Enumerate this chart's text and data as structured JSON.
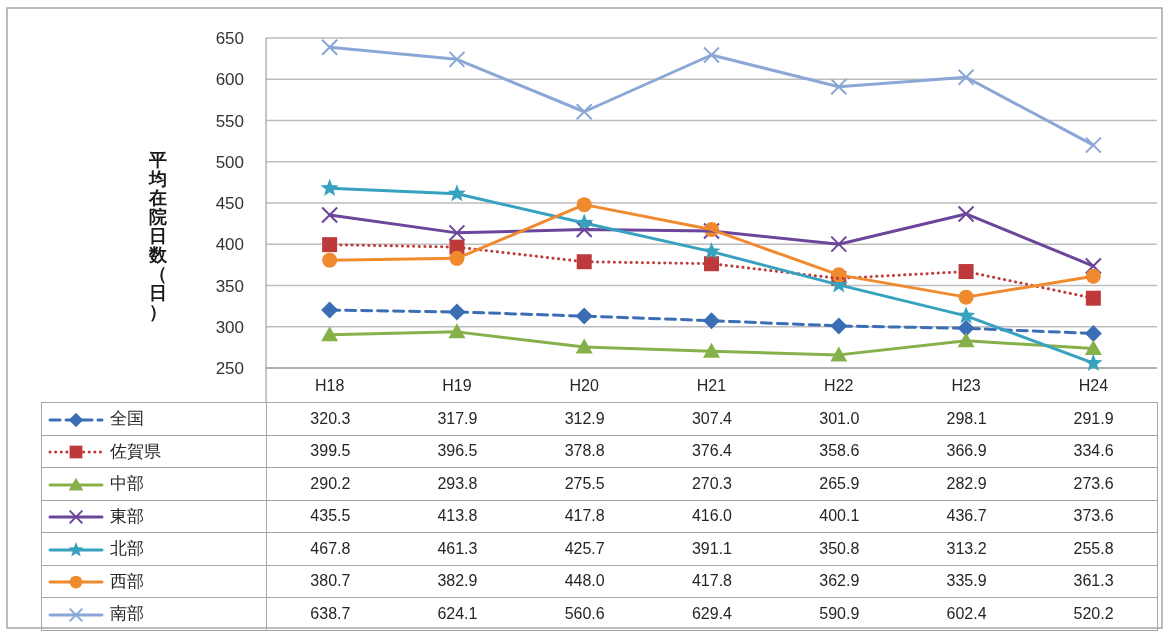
{
  "chart_data": {
    "type": "line",
    "ylabel": "平均在院日数（日）",
    "categories": [
      "H18",
      "H19",
      "H20",
      "H21",
      "H22",
      "H23",
      "H24"
    ],
    "ylim": [
      250,
      650
    ],
    "yticks": [
      250,
      300,
      350,
      400,
      450,
      500,
      550,
      600,
      650
    ],
    "grid": "y",
    "legend": "bottom",
    "series": [
      {
        "name": "全国",
        "color": "#3b6eb5",
        "marker": "diamond",
        "line_style": "dashed",
        "values": [
          320.3,
          317.9,
          312.9,
          307.4,
          301.0,
          298.1,
          291.9
        ],
        "value_labels": [
          "320.3",
          "317.9",
          "312.9",
          "307.4",
          "301.0",
          "298.1",
          "291.9"
        ]
      },
      {
        "name": "佐賀県",
        "color": "#be3a3a",
        "marker": "square",
        "line_style": "dotted",
        "values": [
          399.5,
          396.5,
          378.8,
          376.4,
          358.6,
          366.9,
          334.6
        ],
        "value_labels": [
          "399.5",
          "396.5",
          "378.8",
          "376.4",
          "358.6",
          "366.9",
          "334.6"
        ]
      },
      {
        "name": "中部",
        "color": "#86b04a",
        "marker": "triangle",
        "line_style": "solid",
        "values": [
          290.2,
          293.8,
          275.5,
          270.3,
          265.9,
          282.9,
          273.6
        ],
        "value_labels": [
          "290.2",
          "293.8",
          "275.5",
          "270.3",
          "265.9",
          "282.9",
          "273.6"
        ]
      },
      {
        "name": "東部",
        "color": "#6b469b",
        "marker": "cross",
        "line_style": "solid",
        "values": [
          435.5,
          413.8,
          417.8,
          416.0,
          400.1,
          436.7,
          373.6
        ],
        "value_labels": [
          "435.5",
          "413.8",
          "417.8",
          "416.0",
          "400.1",
          "436.7",
          "373.6"
        ]
      },
      {
        "name": "北部",
        "color": "#37a2c0",
        "marker": "star",
        "line_style": "solid",
        "values": [
          467.8,
          461.3,
          425.7,
          391.1,
          350.8,
          313.2,
          255.8
        ],
        "value_labels": [
          "467.8",
          "461.3",
          "425.7",
          "391.1",
          "350.8",
          "313.2",
          "255.8"
        ]
      },
      {
        "name": "西部",
        "color": "#ef8a2f",
        "marker": "circle",
        "line_style": "solid",
        "values": [
          380.7,
          382.9,
          448.0,
          417.8,
          362.9,
          335.9,
          361.3
        ],
        "value_labels": [
          "380.7",
          "382.9",
          "448.0",
          "417.8",
          "362.9",
          "335.9",
          "361.3"
        ]
      },
      {
        "name": "南部",
        "color": "#8aa7d6",
        "marker": "cross",
        "line_style": "solid",
        "values": [
          638.7,
          624.1,
          560.6,
          629.4,
          590.9,
          602.4,
          520.2
        ],
        "value_labels": [
          "638.7",
          "624.1",
          "560.6",
          "629.4",
          "590.9",
          "602.4",
          "520.2"
        ]
      }
    ]
  }
}
